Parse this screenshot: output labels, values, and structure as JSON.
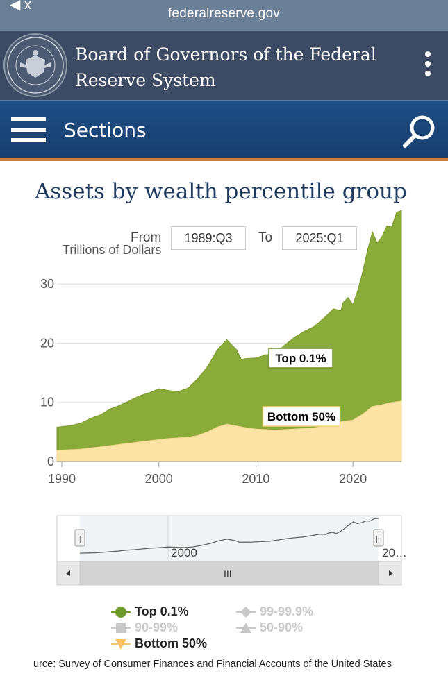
{
  "browser": {
    "url": "federalreserve.gov",
    "back_glyph": "◀ x"
  },
  "header": {
    "title": "Board of Governors of the Federal Reserve System",
    "seal_text": "BOARD OF GOVERNORS OF THE FEDERAL RESERVE SYSTEM"
  },
  "nav": {
    "sections_label": "Sections"
  },
  "page": {
    "title": "Assets by wealth percentile group"
  },
  "range": {
    "from_label": "From",
    "from_value": "1989:Q3",
    "to_label": "To",
    "to_value": "2025:Q1"
  },
  "colors": {
    "top01": "#8aaa3a",
    "bottom50": "#fbe3a4",
    "header": "#3c4b63",
    "nav": "#1f4e86",
    "accent": "#c8813f"
  },
  "chart_data": {
    "type": "area",
    "ylabel": "Trillions of Dollars",
    "ylim": [
      0,
      32
    ],
    "yticks": [
      0,
      10,
      20,
      30
    ],
    "xlim": [
      1989.5,
      2025.0
    ],
    "xticks": [
      1990,
      2000,
      2010,
      2020
    ],
    "grid": true,
    "series": [
      {
        "name": "Top 0.1%",
        "x": [
          1989.5,
          1991,
          1992,
          1993,
          1994,
          1995,
          1996,
          1997,
          1998,
          1999,
          2000,
          2001,
          2002,
          2003,
          2004,
          2005,
          2006,
          2007,
          2008,
          2008.5,
          2009,
          2010,
          2011,
          2012,
          2013,
          2014,
          2015,
          2016,
          2017,
          2018,
          2018.75,
          2019,
          2019.5,
          2020,
          2020.5,
          2021,
          2021.5,
          2022,
          2022.5,
          2023,
          2023.5,
          2024,
          2024.5,
          2025
        ],
        "values": [
          3.9,
          4.1,
          4.4,
          5.0,
          5.4,
          6.2,
          6.6,
          7.2,
          7.8,
          8.1,
          8.6,
          8.1,
          7.8,
          8.3,
          9.6,
          11.0,
          13.0,
          14.3,
          12.9,
          11.4,
          11.7,
          12.0,
          12.6,
          13.0,
          14.3,
          15.5,
          16.4,
          17.1,
          18.2,
          19.4,
          18.8,
          20.1,
          20.8,
          19.5,
          21.4,
          24.0,
          27.0,
          29.5,
          27.5,
          28.4,
          30.0,
          29.6,
          32.0,
          32.2
        ]
      },
      {
        "name": "Bottom 50%",
        "x": [
          1989.5,
          1991,
          1992,
          1993,
          1994,
          1995,
          1996,
          1997,
          1998,
          1999,
          2000,
          2001,
          2002,
          2003,
          2004,
          2005,
          2006,
          2007,
          2008,
          2009,
          2010,
          2011,
          2012,
          2013,
          2014,
          2015,
          2016,
          2017,
          2018,
          2019,
          2020,
          2021,
          2022,
          2023,
          2024,
          2025
        ],
        "values": [
          1.9,
          2.0,
          2.1,
          2.3,
          2.5,
          2.7,
          2.9,
          3.1,
          3.3,
          3.5,
          3.7,
          3.9,
          4.0,
          4.1,
          4.4,
          5.0,
          5.8,
          6.3,
          6.0,
          5.7,
          5.5,
          5.4,
          5.3,
          5.4,
          5.5,
          5.6,
          5.7,
          6.0,
          6.4,
          6.8,
          7.0,
          8.0,
          9.3,
          9.6,
          10.0,
          10.2
        ]
      }
    ],
    "labels": [
      {
        "series": "Top 0.1%",
        "text": "Top 0.1%"
      },
      {
        "series": "Bottom 50%",
        "text": "Bottom 50%"
      }
    ],
    "navigator": {
      "year_label": "2000",
      "end_label": "20…",
      "scroll_label": "III"
    },
    "legend": [
      {
        "label": "Top 0.1%",
        "color": "#6e9a2b",
        "active": true,
        "marker": "circle"
      },
      {
        "label": "99-99.9%",
        "color": "#c8c8c8",
        "active": false,
        "marker": "diamond"
      },
      {
        "label": "90-99%",
        "color": "#c8c8c8",
        "active": false,
        "marker": "square"
      },
      {
        "label": "50-90%",
        "color": "#c8c8c8",
        "active": false,
        "marker": "triangle"
      },
      {
        "label": "Bottom 50%",
        "color": "#f5c566",
        "active": true,
        "marker": "triangle-down"
      }
    ],
    "source": "urce: Survey of Consumer Finances and Financial Accounts of the United States"
  }
}
